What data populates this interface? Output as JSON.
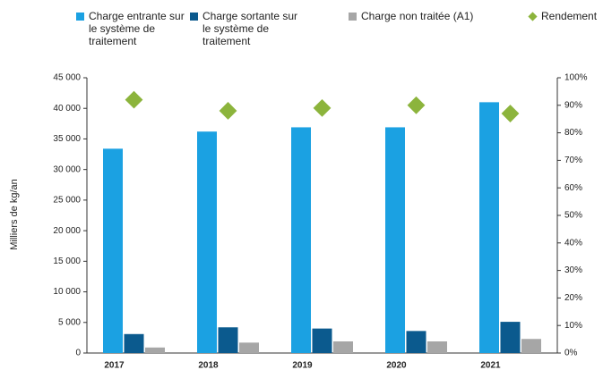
{
  "chart_data": {
    "type": "bar",
    "y_label": "Milliers de kg/an",
    "categories": [
      "2017",
      "2018",
      "2019",
      "2020",
      "2021"
    ],
    "series": [
      {
        "name": "Charge entrante sur le système de traitement",
        "color": "#1ba1e2",
        "values": [
          33400,
          36200,
          36900,
          36900,
          41000
        ]
      },
      {
        "name": "Charge sortante sur le système de traitement",
        "color": "#0b5a8e",
        "values": [
          3100,
          4200,
          4000,
          3600,
          5100
        ]
      },
      {
        "name": "Charge non traitée (A1)",
        "color": "#a6a6a6",
        "values": [
          900,
          1700,
          1900,
          1900,
          2300
        ]
      },
      {
        "name": "Rendement",
        "color": "#8cb43c",
        "type": "scatter",
        "axis": "y2",
        "values": [
          92,
          88,
          89,
          90,
          87
        ]
      }
    ],
    "ylim": [
      0,
      45000
    ],
    "yticks": [
      0,
      {
        "value": 5000,
        "label": "5 000"
      },
      {
        "value": 10000,
        "label": "10 000"
      },
      {
        "value": 15000,
        "label": "15 000"
      },
      {
        "value": 20000,
        "label": "20 000"
      },
      {
        "value": 25000,
        "label": "25 000"
      },
      {
        "value": 30000,
        "label": "30 000"
      },
      {
        "value": 35000,
        "label": "35 000"
      },
      {
        "value": 40000,
        "label": "40 000"
      },
      {
        "value": 45000,
        "label": "45 000"
      }
    ],
    "y2lim": [
      0,
      100
    ],
    "y2ticks": [
      {
        "value": 0,
        "label": "0%"
      },
      {
        "value": 10,
        "label": "10%"
      },
      {
        "value": 20,
        "label": "20%"
      },
      {
        "value": 30,
        "label": "30%"
      },
      {
        "value": 40,
        "label": "40%"
      },
      {
        "value": 50,
        "label": "50%"
      },
      {
        "value": 60,
        "label": "60%"
      },
      {
        "value": 70,
        "label": "70%"
      },
      {
        "value": 80,
        "label": "80%"
      },
      {
        "value": 90,
        "label": "90%"
      },
      {
        "value": 100,
        "label": "100%"
      }
    ],
    "grid": false
  }
}
